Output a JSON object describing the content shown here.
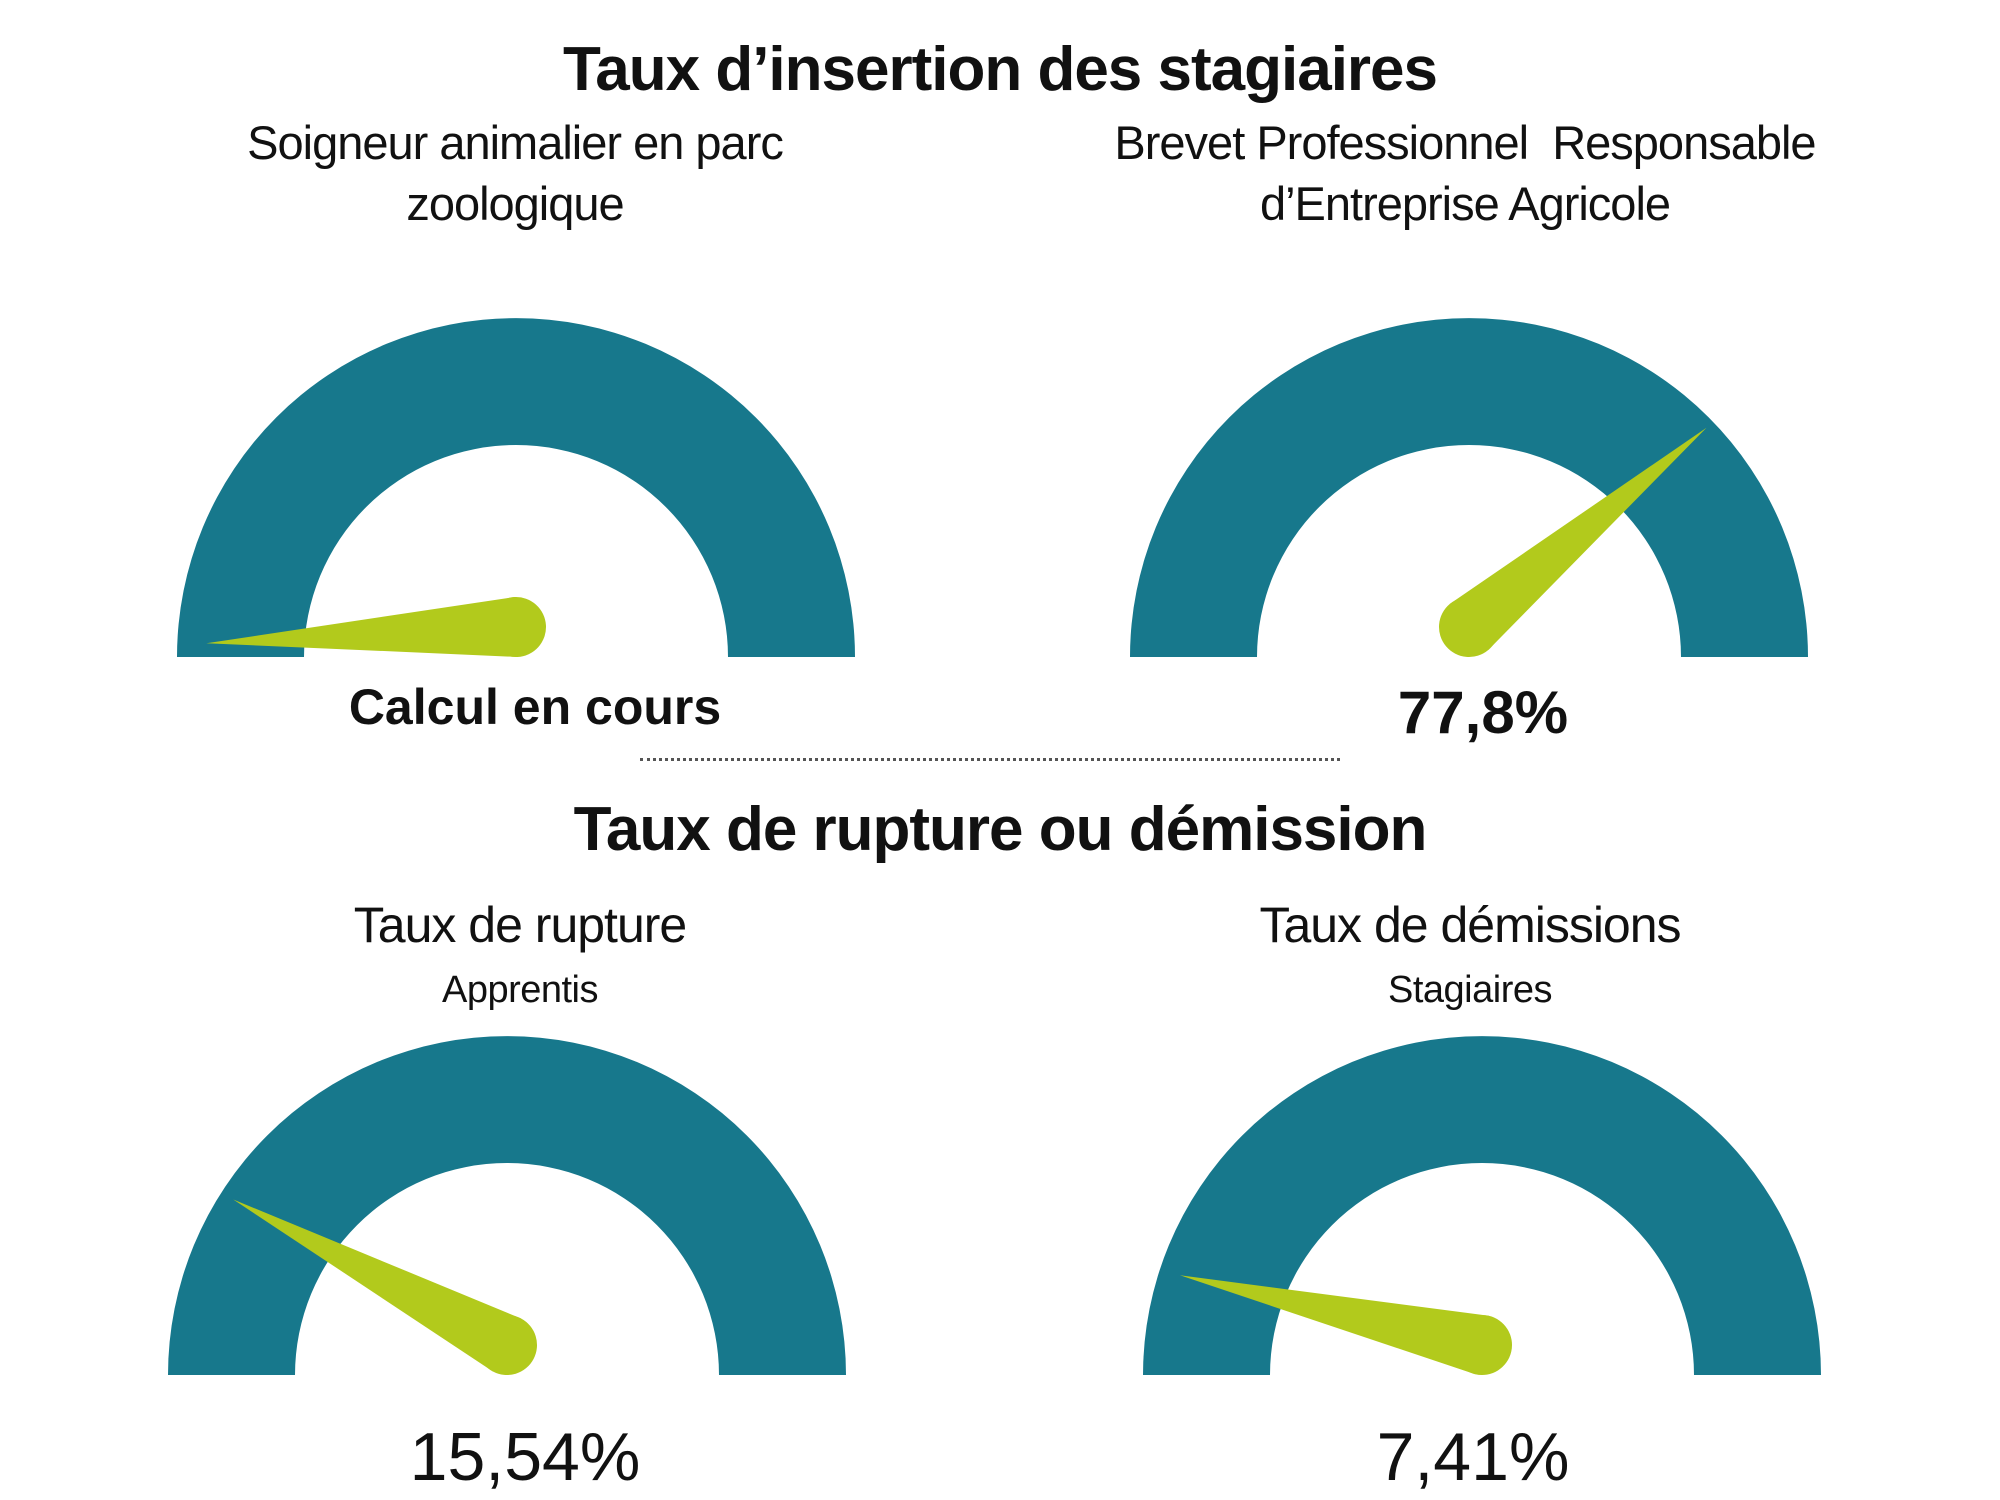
{
  "colors": {
    "gauge_arc": "#17788c",
    "gauge_needle": "#b2ca1c",
    "text": "#111111",
    "divider": "#555555"
  },
  "sections": [
    {
      "title": "Taux d’insertion des stagiaires"
    },
    {
      "title": "Taux de rupture ou démission"
    }
  ],
  "chart_data": [
    {
      "type": "gauge",
      "section": "Taux d’insertion des stagiaires",
      "title": "Soigneur animalier en parc\nzoologique",
      "value": null,
      "value_label": "Calcul en cours",
      "min": 0,
      "max": 100,
      "needle_deg": 183
    },
    {
      "type": "gauge",
      "section": "Taux d’insertion des stagiaires",
      "title": "Brevet Professionnel  Responsable\nd’Entreprise Agricole",
      "value": 77.8,
      "value_label": "77,8%",
      "min": 0,
      "max": 100,
      "needle_deg": 40
    },
    {
      "type": "gauge",
      "section": "Taux de rupture ou démission",
      "title": "Taux de rupture",
      "subtitle": "Apprentis",
      "value": 15.54,
      "value_label": "15,54%",
      "min": 0,
      "max": 100,
      "needle_deg": 152
    },
    {
      "type": "gauge",
      "section": "Taux de rupture ou démission",
      "title": "Taux de démissions",
      "subtitle": "Stagiaires",
      "value": 7.41,
      "value_label": "7,41%",
      "min": 0,
      "max": 100,
      "needle_deg": 167
    }
  ]
}
